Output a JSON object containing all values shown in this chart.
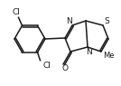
{
  "bg_color": "#ffffff",
  "line_color": "#1a1a1a",
  "line_width": 1.1,
  "font_size": 6.5,
  "figsize": [
    1.34,
    0.95
  ],
  "dpi": 100,
  "labels": {
    "Cl1": "Cl",
    "Cl2": "Cl",
    "N_imidazo": "N",
    "N_fused": "N",
    "S": "S",
    "O": "O",
    "Me": "Me"
  }
}
